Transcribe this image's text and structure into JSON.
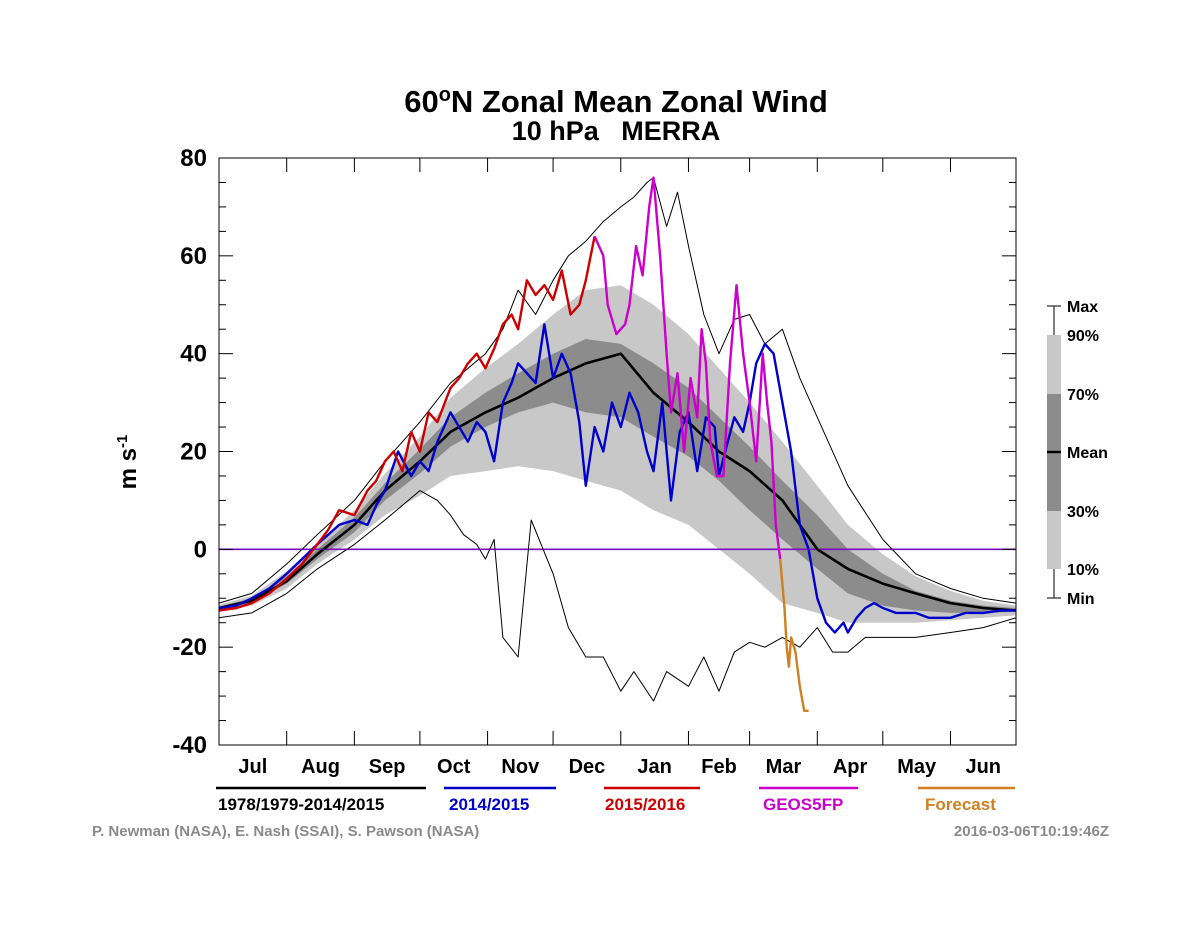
{
  "chart_data": {
    "type": "line",
    "title": "60",
    "title_sup": "o",
    "title_rest": "N Zonal Mean Zonal Wind",
    "subtitle": "10 hPa   MERRA",
    "ylabel": "m s",
    "ylabel_sup": "-1",
    "ylim": [
      -40,
      80
    ],
    "yticks": [
      80,
      60,
      40,
      20,
      0,
      -20,
      -40
    ],
    "xlabel": "",
    "x_unit": "day of season starting 1 Jul",
    "xlim": [
      0,
      365
    ],
    "month_labels": [
      "Jul",
      "Aug",
      "Sep",
      "Oct",
      "Nov",
      "Dec",
      "Jan",
      "Feb",
      "Mar",
      "Apr",
      "May",
      "Jun"
    ],
    "zero_line": true,
    "bands": {
      "x": [
        0,
        15,
        31,
        45,
        62,
        76,
        92,
        106,
        122,
        137,
        153,
        168,
        184,
        199,
        215,
        229,
        243,
        258,
        274,
        288,
        304,
        319,
        335,
        350,
        365
      ],
      "p10": [
        -12.5,
        -11.5,
        -8,
        -3,
        2,
        7,
        11,
        15,
        16,
        17,
        16,
        14,
        12,
        8,
        5,
        0,
        -5,
        -11,
        -13,
        -15,
        -15,
        -15,
        -14.5,
        -14,
        -13.5
      ],
      "p30": [
        -12.3,
        -11,
        -7,
        -2,
        3.5,
        10,
        15.5,
        21,
        25,
        28,
        30,
        28,
        27,
        23,
        19,
        14,
        8,
        2,
        -4,
        -9,
        -11.5,
        -12.5,
        -13,
        -13,
        -12.8
      ],
      "p70": [
        -11.7,
        -10,
        -5.5,
        0,
        6.5,
        13.5,
        20.5,
        27,
        32,
        36,
        40,
        43,
        42,
        38,
        33,
        27,
        21,
        14,
        7,
        0,
        -5,
        -8.5,
        -10.5,
        -11.5,
        -12
      ],
      "p90": [
        -11.3,
        -9.5,
        -4.5,
        1,
        8,
        15.5,
        23,
        31,
        37,
        42,
        48,
        53,
        54,
        50,
        44,
        37,
        30,
        22,
        13,
        5,
        -1,
        -5.5,
        -8.5,
        -10.5,
        -11.5
      ]
    },
    "series": [
      {
        "name": "1978/1979-2014/2015",
        "role": "mean",
        "color": "#000000",
        "x": [
          0,
          15,
          31,
          45,
          62,
          76,
          92,
          106,
          122,
          137,
          153,
          168,
          184,
          199,
          215,
          229,
          243,
          258,
          274,
          288,
          304,
          319,
          335,
          350,
          365
        ],
        "y": [
          -12,
          -10.5,
          -6.5,
          -1,
          5,
          12,
          18,
          24,
          28,
          31,
          35,
          38,
          40,
          32,
          26,
          20,
          16,
          10,
          0,
          -4,
          -7,
          -9,
          -11,
          -12,
          -12.5
        ]
      },
      {
        "name": "Max",
        "role": "max",
        "color": "#000000",
        "x": [
          0,
          15,
          31,
          45,
          62,
          76,
          92,
          106,
          122,
          130,
          137,
          145,
          153,
          160,
          168,
          176,
          184,
          190,
          196,
          199,
          205,
          210,
          215,
          222,
          229,
          236,
          243,
          250,
          258,
          266,
          274,
          288,
          304,
          319,
          335,
          350,
          365
        ],
        "y": [
          -11,
          -9,
          -3,
          3,
          10,
          18,
          26,
          34,
          40,
          45,
          53,
          48,
          55,
          60,
          63,
          67,
          70,
          72,
          75,
          76,
          66,
          73,
          62,
          48,
          40,
          47,
          48,
          42,
          45,
          35,
          27,
          13,
          2,
          -5,
          -8,
          -10,
          -11
        ]
      },
      {
        "name": "Min",
        "role": "min",
        "color": "#000000",
        "x": [
          0,
          15,
          31,
          45,
          62,
          76,
          92,
          100,
          106,
          112,
          118,
          122,
          126,
          130,
          137,
          143,
          153,
          160,
          168,
          176,
          184,
          190,
          199,
          205,
          215,
          222,
          229,
          236,
          243,
          250,
          258,
          266,
          274,
          281,
          288,
          296,
          304,
          319,
          335,
          350,
          365
        ],
        "y": [
          -14,
          -13,
          -9,
          -4,
          1,
          6,
          12,
          10,
          7,
          3,
          1,
          -2,
          2,
          -18,
          -22,
          6,
          -5,
          -16,
          -22,
          -22,
          -29,
          -25,
          -31,
          -25,
          -28,
          -22,
          -29,
          -21,
          -19,
          -20,
          -18,
          -20,
          -16,
          -21,
          -21,
          -18,
          -18,
          -18,
          -17,
          -16,
          -14
        ]
      },
      {
        "name": "2014/2015",
        "color": "#0000cc",
        "x": [
          0,
          8,
          15,
          23,
          31,
          38,
          45,
          50,
          55,
          62,
          68,
          72,
          76,
          82,
          88,
          92,
          96,
          100,
          106,
          110,
          114,
          118,
          122,
          126,
          130,
          134,
          137,
          141,
          145,
          149,
          153,
          157,
          161,
          165,
          168,
          172,
          176,
          180,
          184,
          188,
          192,
          196,
          199,
          203,
          207,
          211,
          215,
          219,
          223,
          227,
          229,
          233,
          236,
          240,
          243,
          246,
          250,
          254,
          258,
          262,
          266,
          270,
          274,
          278,
          282,
          286,
          288,
          292,
          296,
          300,
          304,
          310,
          319,
          325,
          335,
          342,
          350,
          358,
          365
        ],
        "y": [
          -12,
          -11.5,
          -10,
          -8,
          -5,
          -2,
          1,
          3,
          5,
          6,
          5,
          9,
          12,
          20,
          15,
          18,
          16,
          22,
          28,
          25,
          22,
          26,
          24,
          18,
          30,
          34,
          38,
          36,
          34,
          46,
          35,
          40,
          36,
          26,
          13,
          25,
          20,
          30,
          25,
          32,
          28,
          20,
          16,
          30,
          10,
          24,
          28,
          16,
          27,
          25,
          15,
          22,
          27,
          24,
          30,
          38,
          42,
          40,
          30,
          20,
          5,
          0,
          -10,
          -15,
          -17,
          -15,
          -17,
          -14,
          -12,
          -11,
          -12,
          -13,
          -13,
          -14,
          -14,
          -13,
          -13,
          -12.5,
          -12.5
        ]
      },
      {
        "name": "2015/2016",
        "color": "#cc0000",
        "x": [
          0,
          8,
          15,
          23,
          31,
          38,
          45,
          50,
          55,
          62,
          68,
          72,
          76,
          80,
          84,
          88,
          92,
          96,
          100,
          106,
          110,
          114,
          118,
          122,
          126,
          130,
          134,
          137,
          141,
          145,
          149,
          153,
          157,
          161,
          165,
          168,
          172
        ],
        "y": [
          -12.5,
          -12,
          -11,
          -9,
          -6,
          -3,
          1,
          4,
          8,
          7,
          12,
          14,
          18,
          20,
          16,
          24,
          20,
          28,
          26,
          33,
          35,
          38,
          40,
          37,
          41,
          46,
          48,
          45,
          55,
          52,
          54,
          51,
          57,
          48,
          50,
          55,
          64
        ]
      },
      {
        "name": "GEOS5FP",
        "color": "#cc00cc",
        "x": [
          172,
          176,
          178,
          182,
          186,
          188,
          191,
          194,
          197,
          199,
          202,
          205,
          207,
          210,
          213,
          216,
          219,
          221,
          223,
          225,
          228,
          231,
          234,
          237,
          240,
          243,
          246,
          249,
          251,
          253,
          255,
          257
        ],
        "y": [
          64,
          60,
          50,
          44,
          46,
          50,
          62,
          56,
          70,
          76,
          60,
          40,
          28,
          36,
          20,
          35,
          27,
          45,
          38,
          22,
          15,
          15,
          38,
          54,
          40,
          30,
          18,
          40,
          30,
          22,
          5,
          -2
        ]
      },
      {
        "name": "Forecast",
        "color": "#d08020",
        "x": [
          257,
          259,
          260,
          261,
          262,
          264,
          266,
          268,
          270
        ],
        "y": [
          -2,
          -12,
          -20,
          -24,
          -18,
          -21,
          -28,
          -33,
          -33
        ]
      }
    ],
    "legend": {
      "items": [
        "1978/1979-2014/2015",
        "2014/2015",
        "2015/2016",
        "GEOS5FP",
        "Forecast"
      ],
      "colors": [
        "#000000",
        "#0000cc",
        "#cc0000",
        "#cc00cc",
        "#d08020"
      ],
      "placement": "bottom"
    },
    "band_legend": {
      "labels": [
        "Max",
        "90%",
        "70%",
        "Mean",
        "30%",
        "10%",
        "Min"
      ],
      "placement": "right"
    },
    "band_colors": {
      "outer": "#c8c8c8",
      "inner": "#8c8c8c",
      "zero_line": "#8000c0"
    },
    "annotations": {
      "credit_left": "P. Newman (NASA), E. Nash (SSAI), S. Pawson (NASA)",
      "credit_right": "2016-03-06T10:19:46Z"
    }
  }
}
